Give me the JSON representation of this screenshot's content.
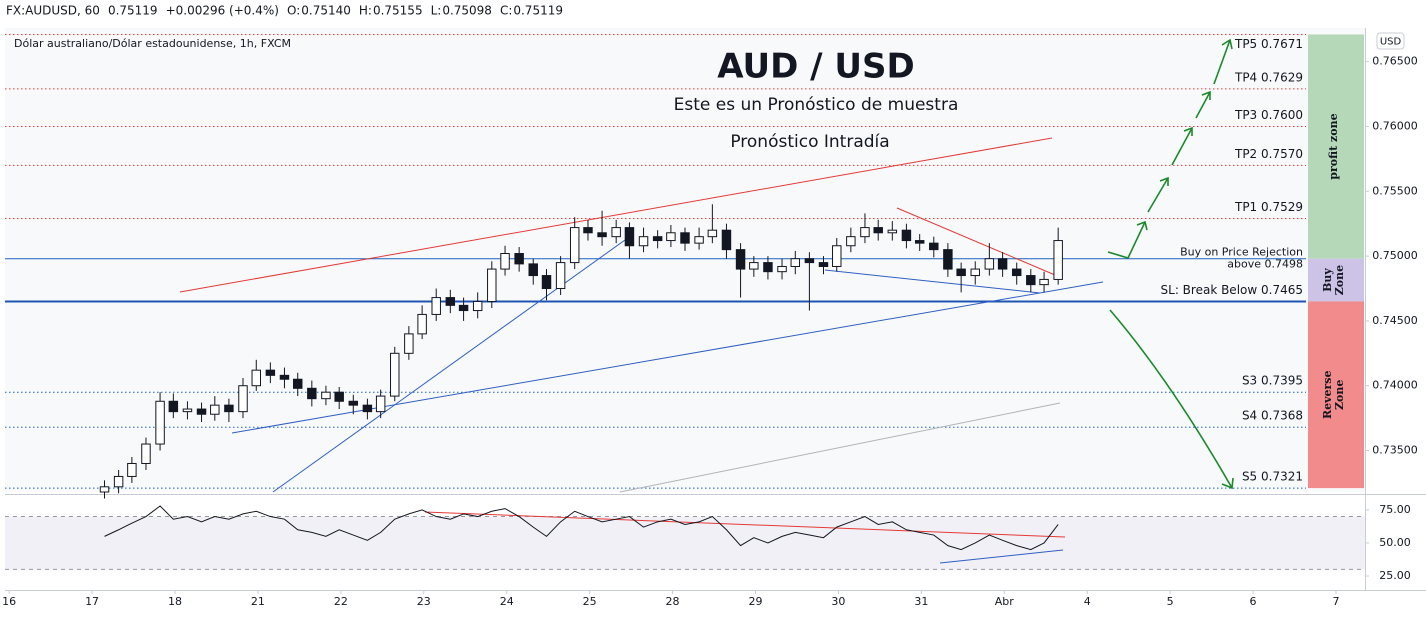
{
  "header": {
    "symbol": "FX:AUDUSD, 60",
    "last": "0.75119",
    "change": "+0.00296 (+0.4%)",
    "ohlc": [
      {
        "label": "O:",
        "value": "0.75140"
      },
      {
        "label": "H:",
        "value": "0.75155"
      },
      {
        "label": "L:",
        "value": "0.75098"
      },
      {
        "label": "C:",
        "value": "0.75119"
      }
    ]
  },
  "chart_data": {
    "type": "candlestick",
    "source": "Dólar australiano/Dólar estadounidense, 1h, FXCM",
    "title": "AUD / USD",
    "subtitle": "Este es un Pronóstico de muestra",
    "subtitle2": "Pronóstico Intradía",
    "currency": "USD",
    "xlim": [
      -0.05,
      16.35
    ],
    "xticks": [
      {
        "value": 0,
        "label": "16"
      },
      {
        "value": 1,
        "label": "17"
      },
      {
        "value": 2,
        "label": "18"
      },
      {
        "value": 3,
        "label": "21"
      },
      {
        "value": 4,
        "label": "22"
      },
      {
        "value": 5,
        "label": "23"
      },
      {
        "value": 6,
        "label": "24"
      },
      {
        "value": 7,
        "label": "25"
      },
      {
        "value": 8,
        "label": "28"
      },
      {
        "value": 9,
        "label": "29"
      },
      {
        "value": 10,
        "label": "30"
      },
      {
        "value": 11,
        "label": "31"
      },
      {
        "value": 12,
        "label": "Abr"
      },
      {
        "value": 13,
        "label": "4"
      },
      {
        "value": 14,
        "label": "5"
      },
      {
        "value": 15,
        "label": "6"
      },
      {
        "value": 16,
        "label": "7"
      }
    ],
    "ylim": [
      0.7318,
      0.7676
    ],
    "yticks": [
      {
        "value": 0.735,
        "label": "0.73500"
      },
      {
        "value": 0.74,
        "label": "0.74000"
      },
      {
        "value": 0.745,
        "label": "0.74500"
      },
      {
        "value": 0.75,
        "label": "0.75000"
      },
      {
        "value": 0.755,
        "label": "0.75500"
      },
      {
        "value": 0.76,
        "label": "0.76000"
      },
      {
        "value": 0.765,
        "label": "0.76500"
      }
    ],
    "up_color": "#ffffff",
    "down_color": "#131722",
    "wick_color": "#131722",
    "candles": {
      "x": [
        1.15,
        1.32,
        1.48,
        1.65,
        1.82,
        1.98,
        2.15,
        2.32,
        2.48,
        2.65,
        2.82,
        2.98,
        3.15,
        3.32,
        3.48,
        3.65,
        3.82,
        3.98,
        4.15,
        4.32,
        4.48,
        4.65,
        4.82,
        4.98,
        5.15,
        5.32,
        5.48,
        5.65,
        5.82,
        5.98,
        6.15,
        6.32,
        6.48,
        6.65,
        6.82,
        6.98,
        7.15,
        7.32,
        7.48,
        7.65,
        7.82,
        7.98,
        8.15,
        8.32,
        8.48,
        8.65,
        8.82,
        8.98,
        9.15,
        9.32,
        9.48,
        9.65,
        9.82,
        9.98,
        10.15,
        10.32,
        10.48,
        10.65,
        10.82,
        10.98,
        11.15,
        11.32,
        11.48,
        11.65,
        11.82,
        11.98,
        12.15,
        12.32,
        12.48,
        12.65
      ],
      "open": [
        0.7318,
        0.7322,
        0.733,
        0.734,
        0.7355,
        0.7388,
        0.738,
        0.7382,
        0.7378,
        0.7385,
        0.738,
        0.74,
        0.7412,
        0.7408,
        0.7405,
        0.7398,
        0.739,
        0.7395,
        0.7388,
        0.7385,
        0.738,
        0.7392,
        0.7425,
        0.744,
        0.7455,
        0.7468,
        0.7462,
        0.7458,
        0.7465,
        0.749,
        0.7502,
        0.7494,
        0.7485,
        0.7475,
        0.7495,
        0.7522,
        0.7518,
        0.7515,
        0.7522,
        0.7508,
        0.7515,
        0.7512,
        0.7518,
        0.751,
        0.7515,
        0.752,
        0.7505,
        0.749,
        0.7495,
        0.7488,
        0.7492,
        0.7498,
        0.7495,
        0.7492,
        0.7508,
        0.7515,
        0.7522,
        0.7518,
        0.752,
        0.7512,
        0.751,
        0.7505,
        0.749,
        0.7485,
        0.749,
        0.7498,
        0.749,
        0.7485,
        0.7478,
        0.7482
      ],
      "high": [
        0.7327,
        0.7335,
        0.7345,
        0.736,
        0.7395,
        0.7394,
        0.7388,
        0.7387,
        0.7392,
        0.739,
        0.7406,
        0.742,
        0.7418,
        0.7414,
        0.741,
        0.7404,
        0.74,
        0.7399,
        0.7393,
        0.739,
        0.7397,
        0.743,
        0.7446,
        0.7462,
        0.7475,
        0.7474,
        0.7468,
        0.7472,
        0.7496,
        0.7508,
        0.7507,
        0.7498,
        0.749,
        0.75,
        0.753,
        0.7528,
        0.7535,
        0.7528,
        0.7526,
        0.7522,
        0.752,
        0.7524,
        0.7522,
        0.7522,
        0.754,
        0.7525,
        0.751,
        0.75,
        0.75,
        0.7498,
        0.7504,
        0.7503,
        0.75,
        0.7514,
        0.7522,
        0.7533,
        0.7528,
        0.7527,
        0.7525,
        0.7517,
        0.7515,
        0.751,
        0.7495,
        0.7496,
        0.751,
        0.7503,
        0.7495,
        0.749,
        0.7488,
        0.7522
      ],
      "low": [
        0.7313,
        0.7317,
        0.7325,
        0.7335,
        0.735,
        0.7375,
        0.7374,
        0.7372,
        0.7373,
        0.7372,
        0.7375,
        0.7396,
        0.7402,
        0.7398,
        0.7392,
        0.7384,
        0.7385,
        0.7382,
        0.7378,
        0.7374,
        0.7375,
        0.7388,
        0.742,
        0.7436,
        0.745,
        0.7456,
        0.745,
        0.7452,
        0.746,
        0.7485,
        0.7488,
        0.7478,
        0.7466,
        0.747,
        0.749,
        0.7512,
        0.7508,
        0.751,
        0.7498,
        0.7503,
        0.7506,
        0.7507,
        0.7504,
        0.7505,
        0.751,
        0.7498,
        0.7468,
        0.7484,
        0.7482,
        0.7482,
        0.7486,
        0.7458,
        0.7486,
        0.7488,
        0.7503,
        0.751,
        0.7512,
        0.7512,
        0.7506,
        0.7504,
        0.7499,
        0.7484,
        0.7472,
        0.7478,
        0.7485,
        0.7484,
        0.7478,
        0.7472,
        0.7472,
        0.7478
      ],
      "close": [
        0.7322,
        0.733,
        0.734,
        0.7355,
        0.7388,
        0.738,
        0.7382,
        0.7378,
        0.7385,
        0.738,
        0.74,
        0.7412,
        0.7408,
        0.7405,
        0.7398,
        0.739,
        0.7395,
        0.7388,
        0.7385,
        0.738,
        0.7392,
        0.7425,
        0.744,
        0.7455,
        0.7468,
        0.7462,
        0.7458,
        0.7465,
        0.749,
        0.7502,
        0.7494,
        0.7485,
        0.7475,
        0.7495,
        0.7522,
        0.7518,
        0.7515,
        0.7522,
        0.7508,
        0.7515,
        0.7512,
        0.7518,
        0.751,
        0.7515,
        0.752,
        0.7505,
        0.749,
        0.7495,
        0.7488,
        0.7492,
        0.7498,
        0.7495,
        0.7492,
        0.7508,
        0.7515,
        0.7522,
        0.7518,
        0.752,
        0.7512,
        0.751,
        0.7505,
        0.749,
        0.7485,
        0.749,
        0.7498,
        0.749,
        0.7485,
        0.7478,
        0.7482,
        0.7512
      ]
    },
    "levels": [
      {
        "value": 0.7671,
        "label": "TP5 0.7671",
        "color": "#e53935",
        "style": "dotted"
      },
      {
        "value": 0.7629,
        "label": "TP4 0.7629",
        "color": "#e53935",
        "style": "dotted"
      },
      {
        "value": 0.76,
        "label": "TP3 0.7600",
        "color": "#e53935",
        "style": "dotted"
      },
      {
        "value": 0.757,
        "label": "TP2 0.7570",
        "color": "#e53935",
        "style": "dotted"
      },
      {
        "value": 0.7529,
        "label": "TP1 0.7529",
        "color": "#e53935",
        "style": "dotted"
      },
      {
        "value": 0.7498,
        "note": "Buy on Price Rejection",
        "label": "above 0.7498",
        "color": "#1e63c0",
        "style": "solid"
      },
      {
        "value": 0.7465,
        "label": "SL: Break Below 0.7465",
        "color": "#1e55b3",
        "style": "thick"
      },
      {
        "value": 0.7395,
        "label": "S3 0.7395",
        "color": "#1e63c0",
        "style": "dotted"
      },
      {
        "value": 0.7368,
        "label": "S4 0.7368",
        "color": "#1e63c0",
        "style": "dotted"
      },
      {
        "value": 0.7321,
        "label": "S5 0.7321",
        "color": "#1e63c0",
        "style": "dotted"
      }
    ],
    "zones": [
      {
        "label": [
          "profit zone"
        ],
        "range": [
          0.7498,
          0.7671
        ],
        "color": "#b5d9b8",
        "text_color": "#1b6b2a"
      },
      {
        "label": [
          "Buy",
          "Zone"
        ],
        "range": [
          0.7465,
          0.7498
        ],
        "color": "#cdc3e6",
        "text_color": "#4a2a7a"
      },
      {
        "label": [
          "Reverse",
          "Zone"
        ],
        "range": [
          0.7321,
          0.7465
        ],
        "color": "#f28b8b",
        "text_color": "#8b1a1a"
      }
    ],
    "rsi": {
      "ylim": [
        14.4,
        84.8
      ],
      "yticks": [
        {
          "value": 25,
          "label": "25.00"
        },
        {
          "value": 50,
          "label": "50.00"
        },
        {
          "value": 75,
          "label": "75.00"
        }
      ],
      "bands": [
        70,
        30
      ],
      "color": "#131722",
      "values": [
        55,
        60,
        65,
        70,
        78,
        68,
        70,
        66,
        70,
        68,
        72,
        74,
        70,
        68,
        60,
        58,
        55,
        60,
        56,
        52,
        58,
        68,
        72,
        75,
        70,
        68,
        72,
        70,
        74,
        76,
        70,
        62,
        55,
        66,
        74,
        70,
        66,
        68,
        70,
        62,
        66,
        68,
        64,
        66,
        70,
        60,
        48,
        54,
        50,
        55,
        58,
        56,
        54,
        62,
        66,
        70,
        64,
        66,
        60,
        58,
        56,
        48,
        45,
        50,
        56,
        52,
        48,
        45,
        50,
        64
      ]
    }
  }
}
